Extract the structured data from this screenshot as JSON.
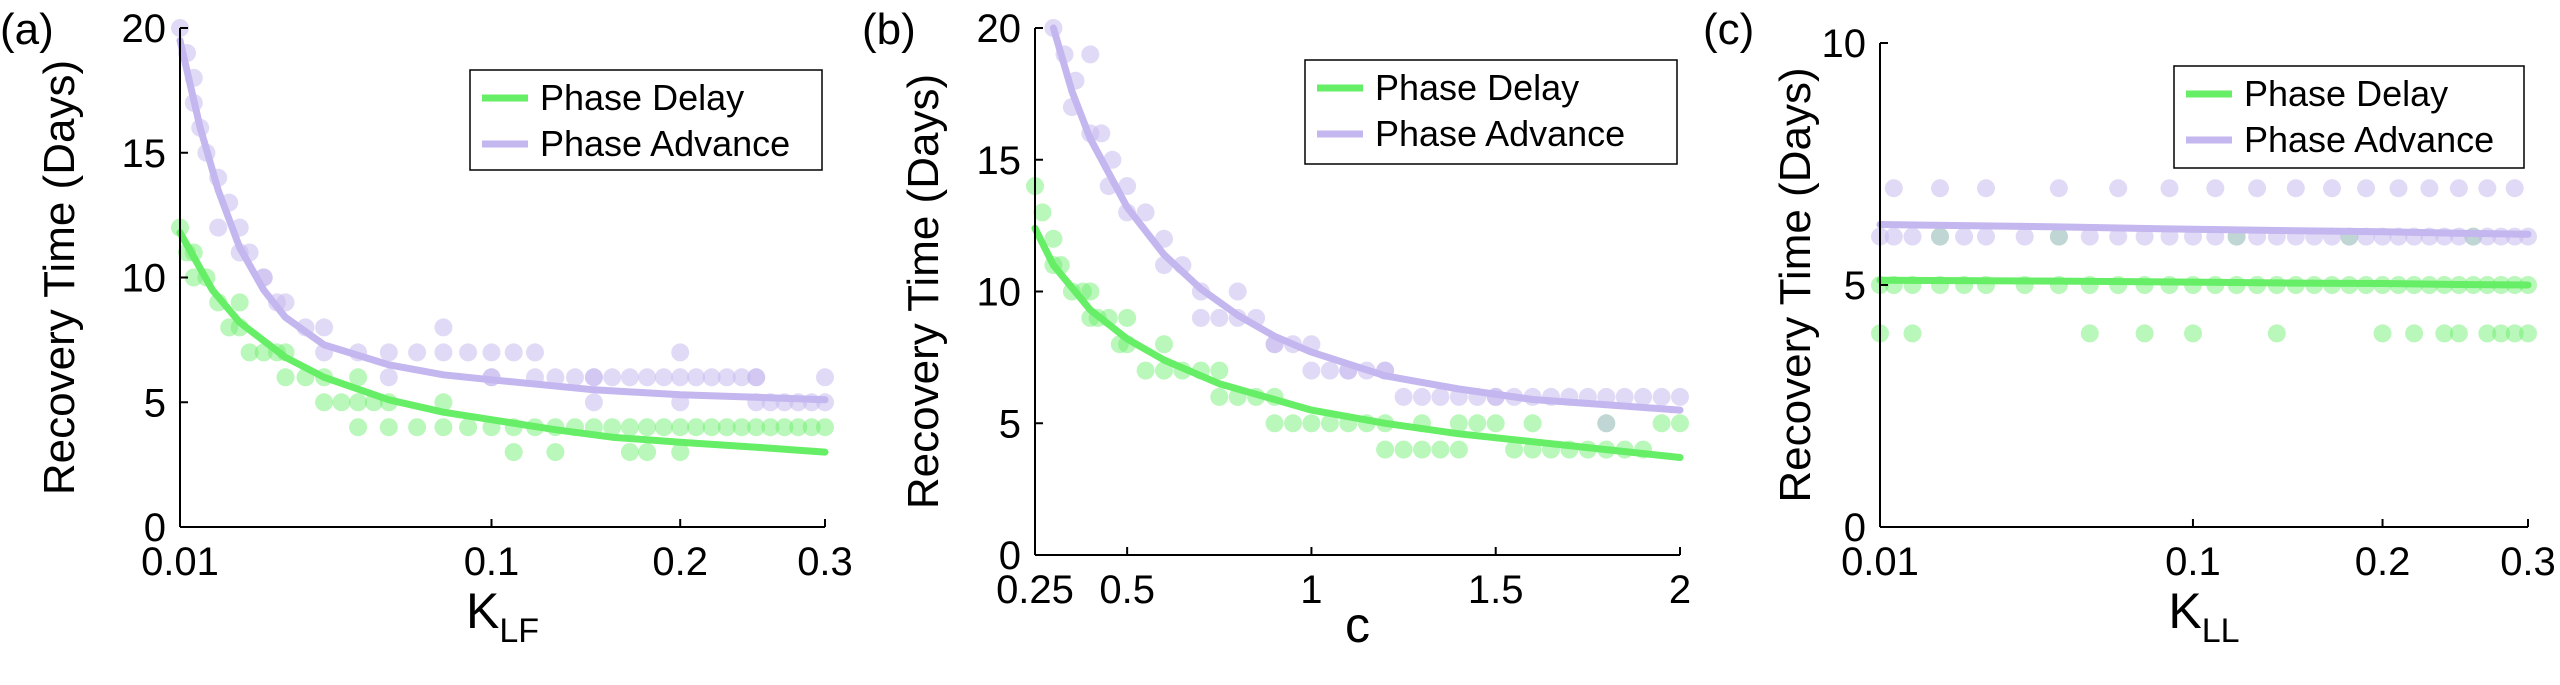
{
  "colors": {
    "delay": "#66ee66",
    "advance": "#c4b6ee",
    "axis": "#000000"
  },
  "legend": {
    "delay": "Phase Delay",
    "advance": "Phase Advance"
  },
  "chart_data": [
    {
      "panel": "(a)",
      "type": "scatter",
      "ylabel": "Recovery Time (Days)",
      "xlabel_main": "K",
      "xlabel_sub": "LF",
      "xscale": "sqrt",
      "xlim": [
        0.01,
        0.3
      ],
      "ylim": [
        0,
        20
      ],
      "xticks": [
        0.01,
        0.1,
        0.2,
        0.3
      ],
      "xtick_labels": [
        "0.01",
        "0.1",
        "0.2",
        "0.3"
      ],
      "yticks": [
        0,
        5,
        10,
        15,
        20
      ],
      "ytick_labels": [
        "0",
        "5",
        "10",
        "15",
        "20"
      ],
      "legend_position": "top-right",
      "fits": {
        "delay": {
          "x": [
            0.01,
            0.015,
            0.02,
            0.03,
            0.04,
            0.06,
            0.08,
            0.1,
            0.13,
            0.16,
            0.2,
            0.25,
            0.3
          ],
          "y": [
            11.8,
            9.5,
            8.2,
            6.8,
            6.0,
            5.1,
            4.6,
            4.3,
            3.9,
            3.6,
            3.4,
            3.2,
            3.0
          ]
        },
        "advance": {
          "x": [
            0.01,
            0.013,
            0.016,
            0.02,
            0.025,
            0.03,
            0.04,
            0.06,
            0.08,
            0.1,
            0.15,
            0.2,
            0.25,
            0.3
          ],
          "y": [
            19.5,
            16.0,
            13.5,
            11.2,
            9.5,
            8.4,
            7.3,
            6.5,
            6.1,
            5.9,
            5.5,
            5.3,
            5.2,
            5.1
          ]
        }
      },
      "series": [
        {
          "name": "Phase Delay",
          "x": [
            0.01,
            0.011,
            0.012,
            0.014,
            0.016,
            0.018,
            0.02,
            0.022,
            0.025,
            0.028,
            0.03,
            0.035,
            0.04,
            0.045,
            0.05,
            0.055,
            0.06,
            0.07,
            0.08,
            0.09,
            0.1,
            0.11,
            0.12,
            0.13,
            0.14,
            0.15,
            0.16,
            0.17,
            0.18,
            0.19,
            0.2,
            0.21,
            0.22,
            0.23,
            0.24,
            0.25,
            0.26,
            0.27,
            0.28,
            0.29,
            0.3,
            0.012,
            0.03,
            0.05,
            0.08,
            0.11,
            0.13,
            0.17,
            0.18,
            0.2,
            0.05,
            0.06,
            0.02,
            0.04
          ],
          "y": [
            12,
            11,
            10,
            10,
            9,
            8,
            8,
            7,
            7,
            7,
            6,
            6,
            5,
            5,
            5,
            5,
            4,
            4,
            4,
            4,
            4,
            4,
            4,
            4,
            4,
            4,
            4,
            4,
            4,
            4,
            4,
            4,
            4,
            4,
            4,
            4,
            4,
            4,
            4,
            4,
            4,
            11,
            7,
            6,
            5,
            3,
            3,
            3,
            3,
            3,
            4,
            5,
            9,
            6
          ]
        },
        {
          "name": "Phase Advance",
          "x": [
            0.01,
            0.011,
            0.012,
            0.013,
            0.014,
            0.016,
            0.018,
            0.02,
            0.022,
            0.025,
            0.028,
            0.03,
            0.035,
            0.04,
            0.05,
            0.06,
            0.07,
            0.08,
            0.09,
            0.1,
            0.11,
            0.12,
            0.13,
            0.14,
            0.15,
            0.16,
            0.17,
            0.18,
            0.19,
            0.2,
            0.21,
            0.22,
            0.23,
            0.24,
            0.25,
            0.26,
            0.27,
            0.28,
            0.29,
            0.3,
            0.012,
            0.016,
            0.02,
            0.025,
            0.04,
            0.06,
            0.08,
            0.1,
            0.12,
            0.15,
            0.2,
            0.25,
            0.3,
            0.1,
            0.15,
            0.2,
            0.25
          ],
          "y": [
            20,
            19,
            18,
            16,
            15,
            14,
            13,
            12,
            11,
            10,
            9,
            9,
            8,
            8,
            7,
            7,
            7,
            7,
            7,
            7,
            7,
            6,
            6,
            6,
            6,
            6,
            6,
            6,
            6,
            6,
            6,
            6,
            6,
            6,
            5,
            5,
            5,
            5,
            5,
            6,
            17,
            12,
            11,
            10,
            7,
            6,
            8,
            6,
            7,
            6,
            7,
            6,
            5,
            6,
            5,
            5,
            6
          ]
        }
      ]
    },
    {
      "panel": "(b)",
      "type": "scatter",
      "ylabel": "Recovery Time (Days)",
      "xlabel_main": "c",
      "xlabel_sub": "",
      "xscale": "linear",
      "xlim": [
        0.25,
        2
      ],
      "ylim": [
        0,
        20
      ],
      "xticks": [
        0.25,
        0.5,
        1,
        1.5,
        2
      ],
      "xtick_labels": [
        "0.25",
        "0.5",
        "1",
        "1.5",
        "2"
      ],
      "yticks": [
        0,
        5,
        10,
        15,
        20
      ],
      "ytick_labels": [
        "0",
        "5",
        "10",
        "15",
        "20"
      ],
      "legend_position": "top-right",
      "fits": {
        "delay": {
          "x": [
            0.25,
            0.3,
            0.4,
            0.5,
            0.6,
            0.75,
            0.9,
            1.0,
            1.2,
            1.4,
            1.6,
            1.8,
            2.0
          ],
          "y": [
            12.4,
            11.0,
            9.3,
            8.2,
            7.4,
            6.5,
            5.9,
            5.5,
            5.0,
            4.6,
            4.3,
            4.0,
            3.7
          ]
        },
        "advance": {
          "x": [
            0.3,
            0.35,
            0.4,
            0.5,
            0.6,
            0.7,
            0.8,
            0.9,
            1.0,
            1.2,
            1.4,
            1.6,
            1.8,
            2.0
          ],
          "y": [
            20.0,
            17.6,
            15.8,
            13.2,
            11.4,
            10.1,
            9.1,
            8.3,
            7.7,
            6.8,
            6.3,
            5.9,
            5.7,
            5.5
          ]
        }
      },
      "series": [
        {
          "name": "Phase Delay",
          "x": [
            0.25,
            0.27,
            0.3,
            0.32,
            0.35,
            0.38,
            0.4,
            0.42,
            0.45,
            0.48,
            0.5,
            0.55,
            0.6,
            0.65,
            0.7,
            0.75,
            0.8,
            0.85,
            0.9,
            0.95,
            1.0,
            1.05,
            1.1,
            1.15,
            1.2,
            1.25,
            1.3,
            1.35,
            1.4,
            1.45,
            1.5,
            1.55,
            1.6,
            1.65,
            1.7,
            1.75,
            1.8,
            1.85,
            1.9,
            1.95,
            2.0,
            0.3,
            0.4,
            0.5,
            0.6,
            0.75,
            0.9,
            1.2,
            1.3,
            1.4,
            1.6,
            1.8
          ],
          "y": [
            14,
            13,
            12,
            11,
            10,
            10,
            9,
            9,
            9,
            8,
            8,
            7,
            7,
            7,
            7,
            6,
            6,
            6,
            5,
            5,
            5,
            5,
            5,
            5,
            4,
            4,
            4,
            4,
            4,
            5,
            5,
            4,
            4,
            4,
            4,
            4,
            4,
            4,
            4,
            5,
            5,
            11,
            10,
            9,
            8,
            7,
            6,
            5,
            5,
            5,
            5,
            5
          ]
        },
        {
          "name": "Phase Advance",
          "x": [
            0.3,
            0.33,
            0.36,
            0.4,
            0.43,
            0.46,
            0.5,
            0.55,
            0.6,
            0.65,
            0.7,
            0.75,
            0.8,
            0.85,
            0.9,
            0.95,
            1.0,
            1.05,
            1.1,
            1.15,
            1.2,
            1.25,
            1.3,
            1.35,
            1.4,
            1.45,
            1.5,
            1.55,
            1.6,
            1.65,
            1.7,
            1.75,
            1.8,
            1.85,
            1.9,
            1.95,
            2.0,
            0.35,
            0.4,
            0.45,
            0.5,
            0.6,
            0.7,
            0.8,
            0.9,
            1.0,
            1.1,
            1.2,
            1.5,
            1.8
          ],
          "y": [
            20,
            19,
            18,
            19,
            16,
            15,
            14,
            13,
            12,
            11,
            10,
            9,
            9,
            9,
            8,
            8,
            7,
            7,
            7,
            7,
            7,
            6,
            6,
            6,
            6,
            6,
            6,
            6,
            6,
            6,
            6,
            6,
            6,
            6,
            6,
            6,
            6,
            17,
            16,
            14,
            13,
            11,
            9,
            10,
            8,
            8,
            7,
            7,
            6,
            5
          ]
        }
      ]
    },
    {
      "panel": "(c)",
      "type": "scatter",
      "ylabel": "Recovery Time (Days)",
      "xlabel_main": "K",
      "xlabel_sub": "LL",
      "xscale": "sqrt",
      "xlim": [
        0.01,
        0.3
      ],
      "ylim": [
        0,
        10
      ],
      "xticks": [
        0.01,
        0.1,
        0.2,
        0.3
      ],
      "xtick_labels": [
        "0.01",
        "0.1",
        "0.2",
        "0.3"
      ],
      "yticks": [
        0,
        5,
        10
      ],
      "ytick_labels": [
        "0",
        "5",
        "10"
      ],
      "legend_position": "top-right",
      "fits": {
        "delay": {
          "x": [
            0.01,
            0.05,
            0.1,
            0.15,
            0.2,
            0.25,
            0.3
          ],
          "y": [
            5.1,
            5.08,
            5.06,
            5.04,
            5.03,
            5.01,
            5.0
          ]
        },
        "advance": {
          "x": [
            0.01,
            0.05,
            0.1,
            0.15,
            0.2,
            0.25,
            0.3
          ],
          "y": [
            6.25,
            6.2,
            6.15,
            6.12,
            6.1,
            6.07,
            6.05
          ]
        }
      },
      "series": [
        {
          "name": "Phase Delay",
          "x": [
            0.01,
            0.012,
            0.015,
            0.02,
            0.025,
            0.03,
            0.04,
            0.05,
            0.06,
            0.07,
            0.08,
            0.09,
            0.1,
            0.11,
            0.12,
            0.13,
            0.14,
            0.15,
            0.16,
            0.17,
            0.18,
            0.19,
            0.2,
            0.21,
            0.22,
            0.23,
            0.24,
            0.25,
            0.26,
            0.27,
            0.28,
            0.29,
            0.3,
            0.01,
            0.015,
            0.06,
            0.08,
            0.1,
            0.14,
            0.2,
            0.22,
            0.24,
            0.25,
            0.27,
            0.28,
            0.29,
            0.3,
            0.02,
            0.05,
            0.12,
            0.18,
            0.26
          ],
          "y": [
            5,
            5,
            5,
            5,
            5,
            5,
            5,
            5,
            5,
            5,
            5,
            5,
            5,
            5,
            5,
            5,
            5,
            5,
            5,
            5,
            5,
            5,
            5,
            5,
            5,
            5,
            5,
            5,
            5,
            5,
            5,
            5,
            5,
            4,
            4,
            4,
            4,
            4,
            4,
            4,
            4,
            4,
            4,
            4,
            4,
            4,
            4,
            6,
            6,
            6,
            6,
            6
          ]
        },
        {
          "name": "Phase Advance",
          "x": [
            0.01,
            0.012,
            0.015,
            0.02,
            0.025,
            0.03,
            0.04,
            0.05,
            0.06,
            0.07,
            0.08,
            0.09,
            0.1,
            0.11,
            0.12,
            0.13,
            0.14,
            0.15,
            0.16,
            0.17,
            0.18,
            0.19,
            0.2,
            0.21,
            0.22,
            0.23,
            0.24,
            0.25,
            0.26,
            0.27,
            0.28,
            0.29,
            0.3,
            0.012,
            0.02,
            0.03,
            0.05,
            0.07,
            0.09,
            0.11,
            0.13,
            0.15,
            0.17,
            0.19,
            0.21,
            0.23,
            0.25,
            0.27,
            0.29
          ],
          "y": [
            6,
            6,
            6,
            6,
            6,
            6,
            6,
            6,
            6,
            6,
            6,
            6,
            6,
            6,
            6,
            6,
            6,
            6,
            6,
            6,
            6,
            6,
            6,
            6,
            6,
            6,
            6,
            6,
            6,
            6,
            6,
            6,
            6,
            7,
            7,
            7,
            7,
            7,
            7,
            7,
            7,
            7,
            7,
            7,
            7,
            7,
            7,
            7,
            7
          ]
        }
      ]
    }
  ]
}
